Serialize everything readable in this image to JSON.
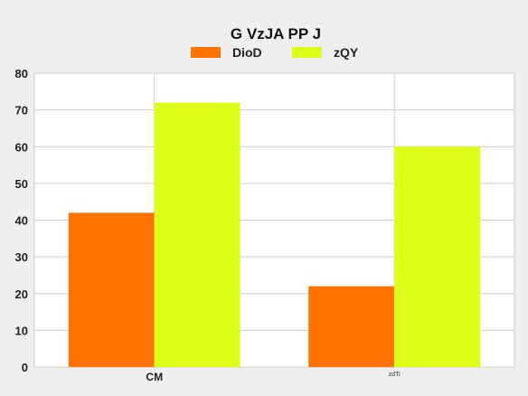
{
  "chart_data": {
    "type": "bar",
    "title": "G  VzJA PP J",
    "categories": [
      "CM",
      "zdTi"
    ],
    "series": [
      {
        "name": "DioD",
        "values": [
          42,
          22
        ]
      },
      {
        "name": "zQY",
        "values": [
          72,
          60
        ]
      }
    ],
    "ylim": [
      0,
      80
    ],
    "yticks": [
      0,
      10,
      20,
      30,
      40,
      50,
      60,
      70,
      80
    ],
    "xlabel": "",
    "ylabel": "",
    "grid": true,
    "legend_position": "top",
    "colors": {
      "DioD": "#ff7300",
      "zQY": "#ddff1a"
    }
  }
}
